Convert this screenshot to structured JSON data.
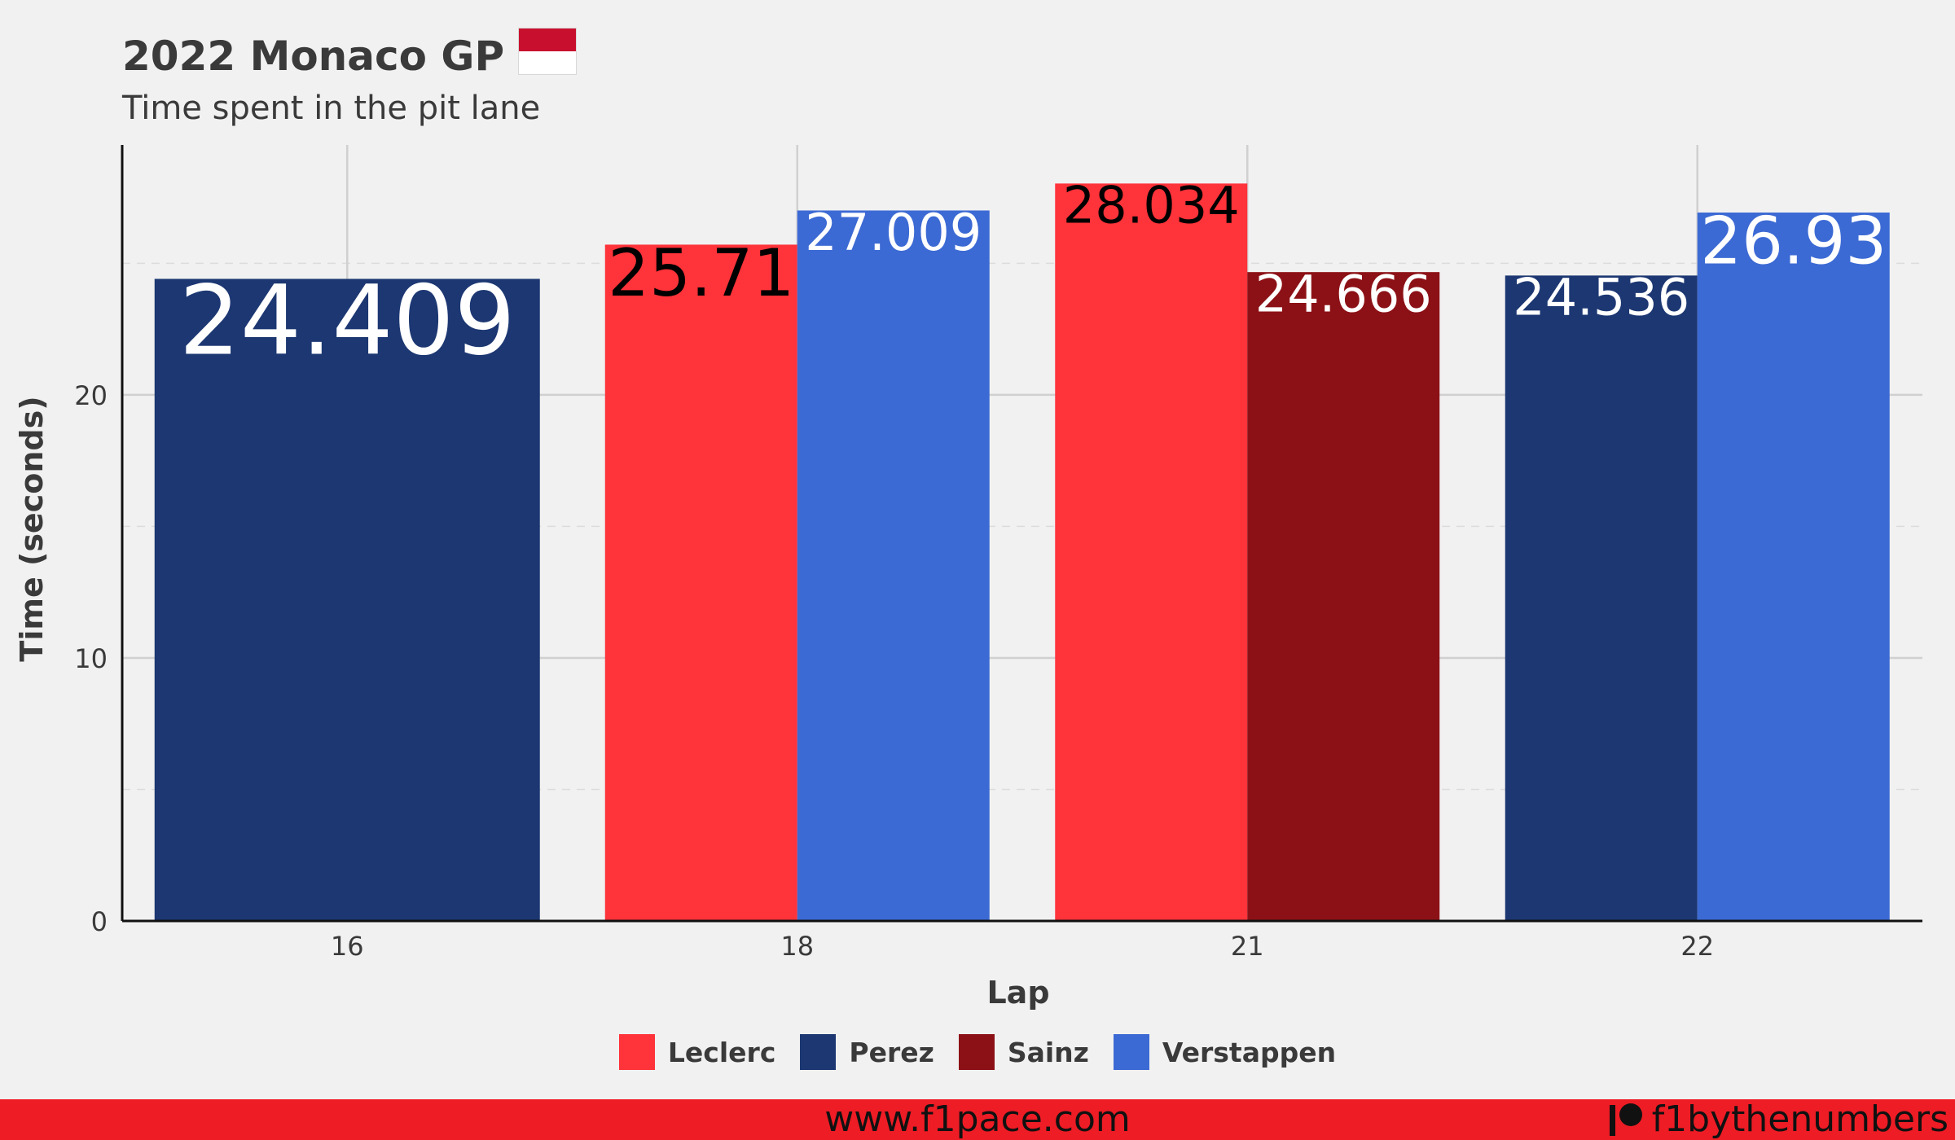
{
  "header": {
    "title": "2022 Monaco GP",
    "subtitle": "Time spent in the pit lane"
  },
  "flag": {
    "icon": "monaco-flag-icon",
    "top_color": "#c8102e",
    "bottom_color": "#ffffff"
  },
  "chart_data": {
    "type": "bar",
    "title": "2022 Monaco GP",
    "subtitle": "Time spent in the pit lane",
    "xlabel": "Lap",
    "ylabel": "Time (seconds)",
    "ylim": [
      0,
      29.5
    ],
    "yticks": [
      0,
      10,
      20
    ],
    "grid": true,
    "legend_position": "bottom",
    "categories": [
      "16",
      "18",
      "21",
      "22"
    ],
    "series": [
      {
        "name": "Leclerc",
        "color": "#ff333a",
        "label_color": "#000000",
        "values": [
          null,
          25.71,
          28.034,
          null
        ]
      },
      {
        "name": "Perez",
        "color": "#1c3772",
        "label_color": "#ffffff",
        "values": [
          24.409,
          null,
          null,
          24.536
        ]
      },
      {
        "name": "Sainz",
        "color": "#8c1116",
        "label_color": "#ffffff",
        "values": [
          null,
          null,
          24.666,
          null
        ]
      },
      {
        "name": "Verstappen",
        "color": "#3c6ad4",
        "label_color": "#ffffff",
        "values": [
          null,
          27.009,
          null,
          26.93
        ]
      }
    ],
    "bar_labels": [
      {
        "category": "16",
        "series": "Perez",
        "text": "24.409"
      },
      {
        "category": "18",
        "series": "Leclerc",
        "text": "25.71"
      },
      {
        "category": "18",
        "series": "Verstappen",
        "text": "27.009"
      },
      {
        "category": "21",
        "series": "Leclerc",
        "text": "28.034"
      },
      {
        "category": "21",
        "series": "Sainz",
        "text": "24.666"
      },
      {
        "category": "22",
        "series": "Perez",
        "text": "24.536"
      },
      {
        "category": "22",
        "series": "Verstappen",
        "text": "26.93"
      }
    ]
  },
  "footer": {
    "url": "www.f1pace.com",
    "handle": "f1bythenumbers",
    "handle_icon": "patreon-icon",
    "background": "#ee1c25"
  }
}
